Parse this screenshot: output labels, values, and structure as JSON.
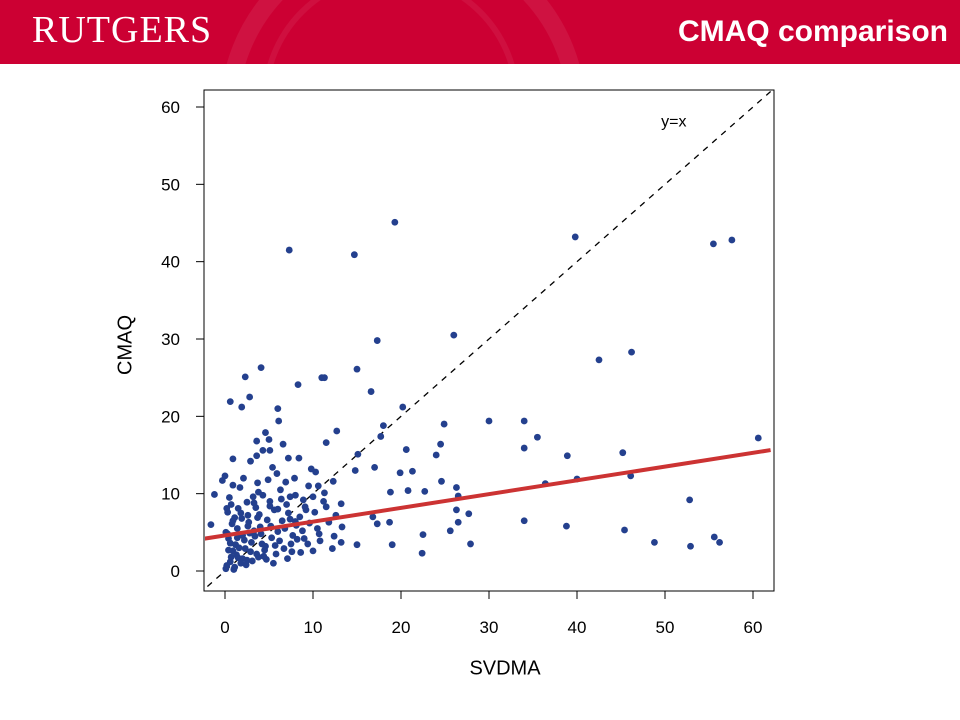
{
  "header": {
    "logo_text": "RUTGERS",
    "title": "CMAQ comparison",
    "banner_color": "#cc0033"
  },
  "chart_data": {
    "type": "scatter",
    "title": "",
    "xlabel": "SVDMA",
    "ylabel": "CMAQ",
    "xlim": [
      -2,
      62
    ],
    "ylim": [
      -2,
      62
    ],
    "x_ticks": [
      0,
      10,
      20,
      30,
      40,
      50,
      60
    ],
    "y_ticks": [
      0,
      10,
      20,
      30,
      40,
      50,
      60
    ],
    "grid": false,
    "point_color": "#24408e",
    "annotations": [
      {
        "text": "y=x",
        "x": 51,
        "y": 57.5
      }
    ],
    "reference_line": {
      "label": "y=x",
      "slope": 1,
      "intercept": 0,
      "style": "dashed",
      "color": "#000000"
    },
    "fit_line": {
      "slope": 0.178,
      "intercept": 4.6,
      "color": "#cc3333"
    },
    "series": [
      {
        "points": [
          [
            19.3,
            45.1
          ],
          [
            39.8,
            43.2
          ],
          [
            55.5,
            42.3
          ],
          [
            57.6,
            42.8
          ],
          [
            7.3,
            41.5
          ],
          [
            14.7,
            40.9
          ],
          [
            26.0,
            30.5
          ],
          [
            17.3,
            29.8
          ],
          [
            46.2,
            28.3
          ],
          [
            42.5,
            27.3
          ],
          [
            4.1,
            26.3
          ],
          [
            15.0,
            26.1
          ],
          [
            2.3,
            25.1
          ],
          [
            11.0,
            25.0
          ],
          [
            11.3,
            25.0
          ],
          [
            8.3,
            24.1
          ],
          [
            16.6,
            23.2
          ],
          [
            2.8,
            22.5
          ],
          [
            0.6,
            21.9
          ],
          [
            1.9,
            21.2
          ],
          [
            6.0,
            21.0
          ],
          [
            20.2,
            21.2
          ],
          [
            6.1,
            19.4
          ],
          [
            24.9,
            19.0
          ],
          [
            30.0,
            19.4
          ],
          [
            34.0,
            19.4
          ],
          [
            18.0,
            18.8
          ],
          [
            12.7,
            18.1
          ],
          [
            4.6,
            17.9
          ],
          [
            17.7,
            17.4
          ],
          [
            35.5,
            17.3
          ],
          [
            60.6,
            17.2
          ],
          [
            11.5,
            16.6
          ],
          [
            24.5,
            16.4
          ],
          [
            3.6,
            16.8
          ],
          [
            6.6,
            16.4
          ],
          [
            20.6,
            15.7
          ],
          [
            34.0,
            15.9
          ],
          [
            5.1,
            15.6
          ],
          [
            4.3,
            15.6
          ],
          [
            3.6,
            14.9
          ],
          [
            7.2,
            14.6
          ],
          [
            24.0,
            15.0
          ],
          [
            38.9,
            14.9
          ],
          [
            45.2,
            15.3
          ],
          [
            0.9,
            14.5
          ],
          [
            8.4,
            14.6
          ],
          [
            15.1,
            15.1
          ],
          [
            17.0,
            13.4
          ],
          [
            19.9,
            12.7
          ],
          [
            21.3,
            12.9
          ],
          [
            0.0,
            12.3
          ],
          [
            5.9,
            12.6
          ],
          [
            10.3,
            12.8
          ],
          [
            14.8,
            13.0
          ],
          [
            46.1,
            12.3
          ],
          [
            -0.3,
            11.7
          ],
          [
            0.9,
            11.1
          ],
          [
            3.7,
            11.4
          ],
          [
            9.5,
            11.0
          ],
          [
            10.6,
            11.0
          ],
          [
            12.3,
            11.6
          ],
          [
            24.6,
            11.6
          ],
          [
            26.3,
            10.8
          ],
          [
            36.4,
            11.3
          ],
          [
            40.0,
            11.9
          ],
          [
            -1.2,
            9.9
          ],
          [
            3.8,
            10.2
          ],
          [
            8.0,
            9.8
          ],
          [
            11.3,
            10.1
          ],
          [
            18.8,
            10.2
          ],
          [
            20.8,
            10.4
          ],
          [
            22.7,
            10.3
          ],
          [
            26.5,
            9.7
          ],
          [
            0.7,
            8.6
          ],
          [
            2.5,
            8.9
          ],
          [
            5.1,
            9.0
          ],
          [
            6.4,
            9.3
          ],
          [
            11.2,
            9.0
          ],
          [
            13.2,
            8.7
          ],
          [
            52.8,
            9.2
          ],
          [
            1.5,
            8.1
          ],
          [
            3.5,
            8.2
          ],
          [
            9.2,
            7.9
          ],
          [
            26.3,
            7.9
          ],
          [
            27.7,
            7.4
          ],
          [
            0.3,
            7.6
          ],
          [
            2.6,
            7.2
          ],
          [
            7.4,
            6.7
          ],
          [
            12.6,
            7.2
          ],
          [
            16.8,
            7.0
          ],
          [
            17.3,
            6.1
          ],
          [
            18.7,
            6.3
          ],
          [
            26.5,
            6.3
          ],
          [
            34.0,
            6.5
          ],
          [
            38.8,
            5.8
          ],
          [
            -1.6,
            6.0
          ],
          [
            0.8,
            6.1
          ],
          [
            4.0,
            5.7
          ],
          [
            8.1,
            5.9
          ],
          [
            13.3,
            5.7
          ],
          [
            25.6,
            5.2
          ],
          [
            45.4,
            5.3
          ],
          [
            0.1,
            5.0
          ],
          [
            2.8,
            4.9
          ],
          [
            6.0,
            5.1
          ],
          [
            10.7,
            4.8
          ],
          [
            22.5,
            4.7
          ],
          [
            55.6,
            4.4
          ],
          [
            0.4,
            4.2
          ],
          [
            3.4,
            4.5
          ],
          [
            9.0,
            4.2
          ],
          [
            13.2,
            3.7
          ],
          [
            15.0,
            3.4
          ],
          [
            19.0,
            3.4
          ],
          [
            27.9,
            3.5
          ],
          [
            48.8,
            3.7
          ],
          [
            56.2,
            3.7
          ],
          [
            1.2,
            3.4
          ],
          [
            4.6,
            3.2
          ],
          [
            7.5,
            3.5
          ],
          [
            12.2,
            2.9
          ],
          [
            52.9,
            3.2
          ],
          [
            0.4,
            2.7
          ],
          [
            2.9,
            2.5
          ],
          [
            5.8,
            2.2
          ],
          [
            10.0,
            2.6
          ],
          [
            22.4,
            2.3
          ],
          [
            0.7,
            1.8
          ],
          [
            2.0,
            1.6
          ],
          [
            4.4,
            1.9
          ],
          [
            7.1,
            1.6
          ],
          [
            0.6,
            1.2
          ],
          [
            1.8,
            1.0
          ],
          [
            3.1,
            1.3
          ],
          [
            5.5,
            1.0
          ],
          [
            0.2,
            0.7
          ],
          [
            1.1,
            0.5
          ],
          [
            2.4,
            0.8
          ],
          [
            0.1,
            0.3
          ],
          [
            1.0,
            0.2
          ],
          [
            0.9,
            6.5
          ],
          [
            1.4,
            5.5
          ],
          [
            1.9,
            6.8
          ],
          [
            2.2,
            4.0
          ],
          [
            1.6,
            3.0
          ],
          [
            1.3,
            2.1
          ],
          [
            2.7,
            6.3
          ],
          [
            3.0,
            3.7
          ],
          [
            3.3,
            5.2
          ],
          [
            3.9,
            7.3
          ],
          [
            4.2,
            3.5
          ],
          [
            4.8,
            6.6
          ],
          [
            5.3,
            4.3
          ],
          [
            5.6,
            7.9
          ],
          [
            6.2,
            3.9
          ],
          [
            6.8,
            5.5
          ],
          [
            7.0,
            8.6
          ],
          [
            7.7,
            4.6
          ],
          [
            8.5,
            7.0
          ],
          [
            8.8,
            5.2
          ],
          [
            9.6,
            6.2
          ],
          [
            10.2,
            7.6
          ],
          [
            0.5,
            9.5
          ],
          [
            1.7,
            10.8
          ],
          [
            2.1,
            12.0
          ],
          [
            3.2,
            9.6
          ],
          [
            4.9,
            11.8
          ],
          [
            5.4,
            13.4
          ],
          [
            6.3,
            10.5
          ],
          [
            7.9,
            12.0
          ],
          [
            9.8,
            13.2
          ],
          [
            2.9,
            14.2
          ],
          [
            5.0,
            17.0
          ],
          [
            0.3,
            4.8
          ],
          [
            0.6,
            3.6
          ],
          [
            0.9,
            2.6
          ],
          [
            1.4,
            4.3
          ],
          [
            1.8,
            7.5
          ],
          [
            2.3,
            2.9
          ],
          [
            2.6,
            5.8
          ],
          [
            3.6,
            2.2
          ],
          [
            3.7,
            6.9
          ],
          [
            4.1,
            4.8
          ],
          [
            4.5,
            2.7
          ],
          [
            5.2,
            5.8
          ],
          [
            5.7,
            3.3
          ],
          [
            6.5,
            6.5
          ],
          [
            6.7,
            2.9
          ],
          [
            7.2,
            7.5
          ],
          [
            7.6,
            2.5
          ],
          [
            8.2,
            4.1
          ],
          [
            8.9,
            9.2
          ],
          [
            9.4,
            3.5
          ],
          [
            10.5,
            5.5
          ],
          [
            11.8,
            6.3
          ],
          [
            12.4,
            4.5
          ],
          [
            0.2,
            8.1
          ],
          [
            1.1,
            6.9
          ],
          [
            1.5,
            1.7
          ],
          [
            2.0,
            4.6
          ],
          [
            2.5,
            1.4
          ],
          [
            3.3,
            8.8
          ],
          [
            3.8,
            1.8
          ],
          [
            4.3,
            9.8
          ],
          [
            4.7,
            1.5
          ],
          [
            5.1,
            8.4
          ],
          [
            6.0,
            8.0
          ],
          [
            6.9,
            11.5
          ],
          [
            7.4,
            9.6
          ],
          [
            8.0,
            6.4
          ],
          [
            8.6,
            2.4
          ],
          [
            9.1,
            8.3
          ],
          [
            10.0,
            9.6
          ],
          [
            10.8,
            3.9
          ],
          [
            11.5,
            8.3
          ]
        ]
      }
    ]
  }
}
